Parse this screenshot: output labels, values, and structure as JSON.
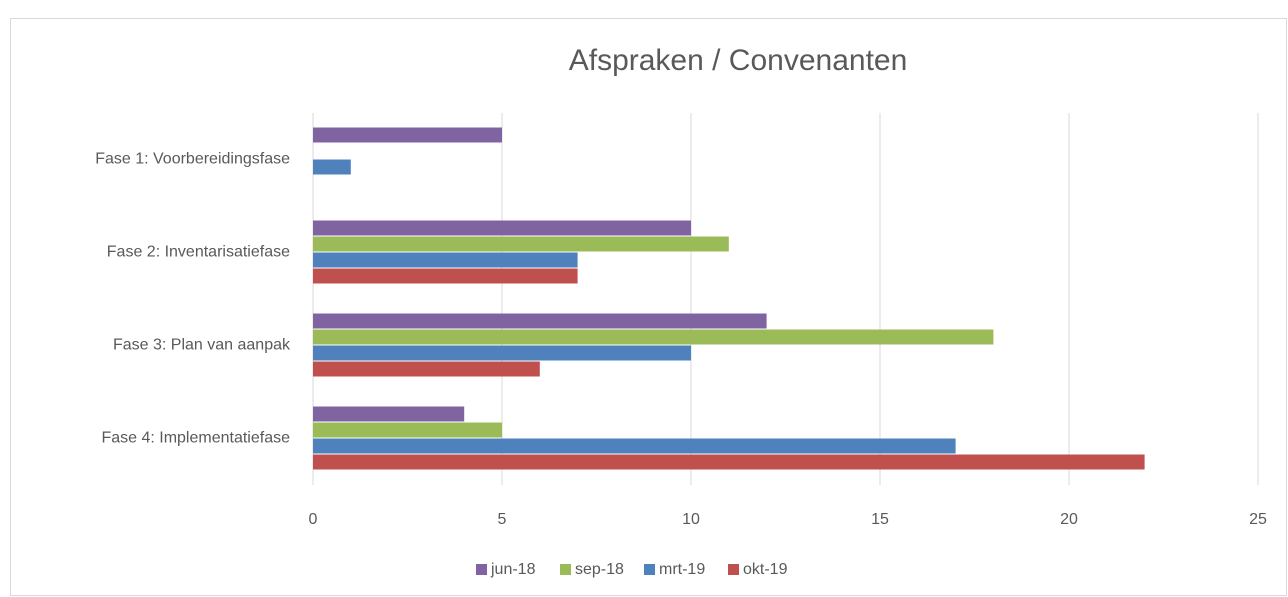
{
  "chart_data": {
    "type": "bar",
    "orientation": "horizontal",
    "title": "Afspraken / Convenanten",
    "categories": [
      "Fase 1: Voorbereidingsfase",
      "Fase 2: Inventarisatiefase",
      "Fase 3: Plan van aanpak",
      "Fase 4: Implementatiefase"
    ],
    "series": [
      {
        "name": "jun-18",
        "color": "#8064a2",
        "values": [
          5,
          10,
          12,
          4
        ]
      },
      {
        "name": "sep-18",
        "color": "#9bbb59",
        "values": [
          0,
          11,
          18,
          5
        ]
      },
      {
        "name": "mrt-19",
        "color": "#4f81bd",
        "values": [
          1,
          7,
          10,
          17
        ]
      },
      {
        "name": "okt-19",
        "color": "#c0504d",
        "values": [
          0,
          7,
          6,
          22
        ]
      }
    ],
    "xlim": [
      0,
      25
    ],
    "xticks": [
      0,
      5,
      10,
      15,
      20,
      25
    ],
    "grid": true,
    "legend": "bottom"
  }
}
